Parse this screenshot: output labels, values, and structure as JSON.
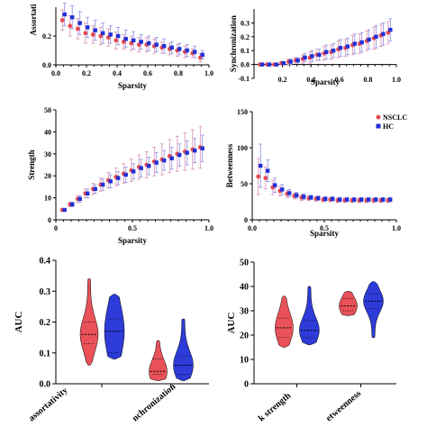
{
  "colors": {
    "nsclc": "#e8494f",
    "hc": "#2230d6",
    "nsclc_err": "#d98fb0",
    "hc_err": "#8a8fe0"
  },
  "chart_data": [
    {
      "id": "assortativity",
      "type": "scatter",
      "ylabel": "Assortati",
      "xlabel": "Sparsity",
      "xlim": [
        0,
        1.0
      ],
      "ylim": [
        0,
        0.4
      ],
      "xticks": [
        "0.0",
        "0.2",
        "0.4",
        "0.6",
        "0.8",
        "1.0"
      ],
      "yticks": [
        "0.0",
        "0.2"
      ],
      "x": [
        0.05,
        0.1,
        0.15,
        0.2,
        0.25,
        0.3,
        0.35,
        0.4,
        0.45,
        0.5,
        0.55,
        0.6,
        0.65,
        0.7,
        0.75,
        0.8,
        0.85,
        0.9,
        0.95
      ],
      "series": [
        {
          "name": "NSCLC",
          "values": [
            0.31,
            0.27,
            0.25,
            0.22,
            0.21,
            0.2,
            0.19,
            0.17,
            0.16,
            0.15,
            0.14,
            0.14,
            0.13,
            0.12,
            0.11,
            0.1,
            0.09,
            0.08,
            0.05
          ],
          "err": [
            0.07,
            0.07,
            0.07,
            0.07,
            0.06,
            0.06,
            0.06,
            0.06,
            0.05,
            0.05,
            0.05,
            0.05,
            0.05,
            0.04,
            0.04,
            0.04,
            0.04,
            0.03,
            0.03
          ]
        },
        {
          "name": "HC",
          "values": [
            0.35,
            0.33,
            0.29,
            0.26,
            0.24,
            0.22,
            0.21,
            0.2,
            0.18,
            0.17,
            0.16,
            0.15,
            0.14,
            0.13,
            0.12,
            0.11,
            0.1,
            0.09,
            0.07
          ],
          "err": [
            0.08,
            0.08,
            0.08,
            0.07,
            0.07,
            0.07,
            0.06,
            0.06,
            0.06,
            0.06,
            0.05,
            0.05,
            0.05,
            0.05,
            0.04,
            0.04,
            0.04,
            0.04,
            0.03
          ]
        }
      ]
    },
    {
      "id": "synchronization",
      "type": "scatter",
      "ylabel": "Synchronization",
      "xlabel": "Sparsity",
      "xlim": [
        0,
        1.0
      ],
      "ylim": [
        -0.1,
        0.4
      ],
      "xticks": [
        "0.2",
        "0.4",
        "0.6",
        "0.8",
        "1.0"
      ],
      "yticks": [
        "-0.1",
        "0.0",
        "0.1",
        "0.2",
        "0.3"
      ],
      "x": [
        0.05,
        0.1,
        0.15,
        0.2,
        0.25,
        0.3,
        0.35,
        0.4,
        0.45,
        0.5,
        0.55,
        0.6,
        0.65,
        0.7,
        0.75,
        0.8,
        0.85,
        0.9,
        0.95
      ],
      "series": [
        {
          "name": "NSCLC",
          "values": [
            0.0,
            0.0,
            0.0,
            0.01,
            0.02,
            0.03,
            0.04,
            0.05,
            0.07,
            0.08,
            0.09,
            0.11,
            0.12,
            0.14,
            0.15,
            0.17,
            0.19,
            0.21,
            0.23
          ],
          "err": [
            0.005,
            0.005,
            0.01,
            0.01,
            0.02,
            0.02,
            0.03,
            0.04,
            0.04,
            0.05,
            0.05,
            0.06,
            0.06,
            0.07,
            0.07,
            0.07,
            0.08,
            0.08,
            0.08
          ]
        },
        {
          "name": "HC",
          "values": [
            0.0,
            0.0,
            0.0,
            0.01,
            0.02,
            0.03,
            0.05,
            0.06,
            0.07,
            0.09,
            0.1,
            0.12,
            0.13,
            0.15,
            0.16,
            0.18,
            0.2,
            0.22,
            0.25
          ],
          "err": [
            0.005,
            0.005,
            0.01,
            0.01,
            0.02,
            0.02,
            0.03,
            0.04,
            0.04,
            0.05,
            0.05,
            0.06,
            0.06,
            0.07,
            0.07,
            0.07,
            0.08,
            0.08,
            0.08
          ]
        }
      ]
    },
    {
      "id": "strength",
      "type": "scatter",
      "ylabel": "Strength",
      "xlabel": "Sparsity",
      "xlim": [
        0,
        1.0
      ],
      "ylim": [
        0,
        50
      ],
      "xticks": [
        "0",
        "0.5",
        "1.0"
      ],
      "yticks": [
        "0",
        "10",
        "20",
        "30",
        "40",
        "50"
      ],
      "x": [
        0.05,
        0.1,
        0.15,
        0.2,
        0.25,
        0.3,
        0.35,
        0.4,
        0.45,
        0.5,
        0.55,
        0.6,
        0.65,
        0.7,
        0.75,
        0.8,
        0.85,
        0.9,
        0.95
      ],
      "series": [
        {
          "name": "NSCLC",
          "values": [
            4.5,
            7,
            9.5,
            12,
            14,
            16,
            18,
            19.5,
            21,
            22.5,
            24,
            25,
            26.5,
            27.5,
            29,
            30,
            31,
            32,
            33
          ],
          "err": [
            0.5,
            1,
            1.5,
            2,
            2.5,
            3,
            3.5,
            4,
            4.5,
            5,
            5.5,
            6,
            6.5,
            7,
            7.5,
            8,
            8.5,
            9,
            9.5
          ]
        },
        {
          "name": "HC",
          "values": [
            4.5,
            7,
            9.5,
            12,
            14,
            16,
            17.5,
            19,
            20.5,
            22,
            23.5,
            24.5,
            26,
            27,
            28,
            29.5,
            30.5,
            31.5,
            32.5
          ],
          "err": [
            0.5,
            1,
            1.5,
            2,
            2,
            2.5,
            3,
            3,
            3.5,
            3.5,
            4,
            4,
            4.5,
            4.5,
            5,
            5,
            5.5,
            5.5,
            6
          ]
        }
      ]
    },
    {
      "id": "betweenness",
      "type": "scatter",
      "ylabel": "Betweenness",
      "xlabel": "Sparsity",
      "xlim": [
        0,
        1.0
      ],
      "ylim": [
        0,
        150
      ],
      "xticks": [
        "0.0",
        "0.5",
        "1.0"
      ],
      "yticks": [
        "0",
        "50",
        "100",
        "150"
      ],
      "x": [
        0.05,
        0.1,
        0.15,
        0.2,
        0.25,
        0.3,
        0.35,
        0.4,
        0.45,
        0.5,
        0.55,
        0.6,
        0.65,
        0.7,
        0.75,
        0.8,
        0.85,
        0.9,
        0.95
      ],
      "series": [
        {
          "name": "NSCLC",
          "values": [
            60,
            58,
            45,
            40,
            36,
            33,
            31,
            30,
            29,
            28,
            28,
            27,
            27,
            27,
            27,
            27,
            27,
            27,
            27
          ],
          "err": [
            25,
            15,
            10,
            7,
            5,
            4,
            4,
            3,
            3,
            3,
            3,
            3,
            3,
            3,
            3,
            3,
            3,
            3,
            3
          ]
        },
        {
          "name": "HC",
          "values": [
            75,
            68,
            48,
            42,
            37,
            34,
            32,
            31,
            30,
            29,
            29,
            28,
            28,
            28,
            28,
            28,
            28,
            28,
            28
          ],
          "err": [
            30,
            15,
            10,
            7,
            5,
            4,
            4,
            3,
            3,
            3,
            3,
            3,
            3,
            3,
            3,
            3,
            3,
            3,
            3
          ]
        }
      ],
      "legend": [
        "NSCLC",
        "HC"
      ]
    },
    {
      "id": "auc_left",
      "type": "violin",
      "ylabel": "AUC",
      "ylim": [
        0,
        0.4
      ],
      "yticks": [
        "0.0",
        "0.1",
        "0.2",
        "0.3",
        "0.4"
      ],
      "categories": [
        "Assortativity",
        "Synchronization"
      ],
      "category_labels_visible": [
        "assortativity",
        "nchronization"
      ],
      "series": [
        {
          "name": "NSCLC",
          "data": [
            {
              "min": 0.06,
              "max": 0.34,
              "median": 0.16,
              "q1": 0.13,
              "q3": 0.2
            },
            {
              "min": 0.01,
              "max": 0.14,
              "median": 0.04,
              "q1": 0.03,
              "q3": 0.08
            }
          ]
        },
        {
          "name": "HC",
          "data": [
            {
              "min": 0.08,
              "max": 0.29,
              "median": 0.17,
              "q1": 0.1,
              "q3": 0.21
            },
            {
              "min": 0.01,
              "max": 0.21,
              "median": 0.06,
              "q1": 0.03,
              "q3": 0.09
            }
          ]
        }
      ]
    },
    {
      "id": "auc_right",
      "type": "violin",
      "ylabel": "AUC",
      "ylim": [
        0,
        50
      ],
      "yticks": [
        "0",
        "10",
        "20",
        "30",
        "40",
        "50"
      ],
      "categories": [
        "Network strength",
        "Betweenness"
      ],
      "category_labels_visible": [
        "k strength",
        "etweenness"
      ],
      "series": [
        {
          "name": "NSCLC",
          "data": [
            {
              "min": 15,
              "max": 36,
              "median": 23,
              "q1": 19,
              "q3": 27
            },
            {
              "min": 28,
              "max": 38,
              "median": 32,
              "q1": 30,
              "q3": 35
            }
          ]
        },
        {
          "name": "HC",
          "data": [
            {
              "min": 16,
              "max": 40,
              "median": 22,
              "q1": 19,
              "q3": 26
            },
            {
              "min": 19,
              "max": 42,
              "median": 34,
              "q1": 31,
              "q3": 37
            }
          ]
        }
      ]
    }
  ]
}
